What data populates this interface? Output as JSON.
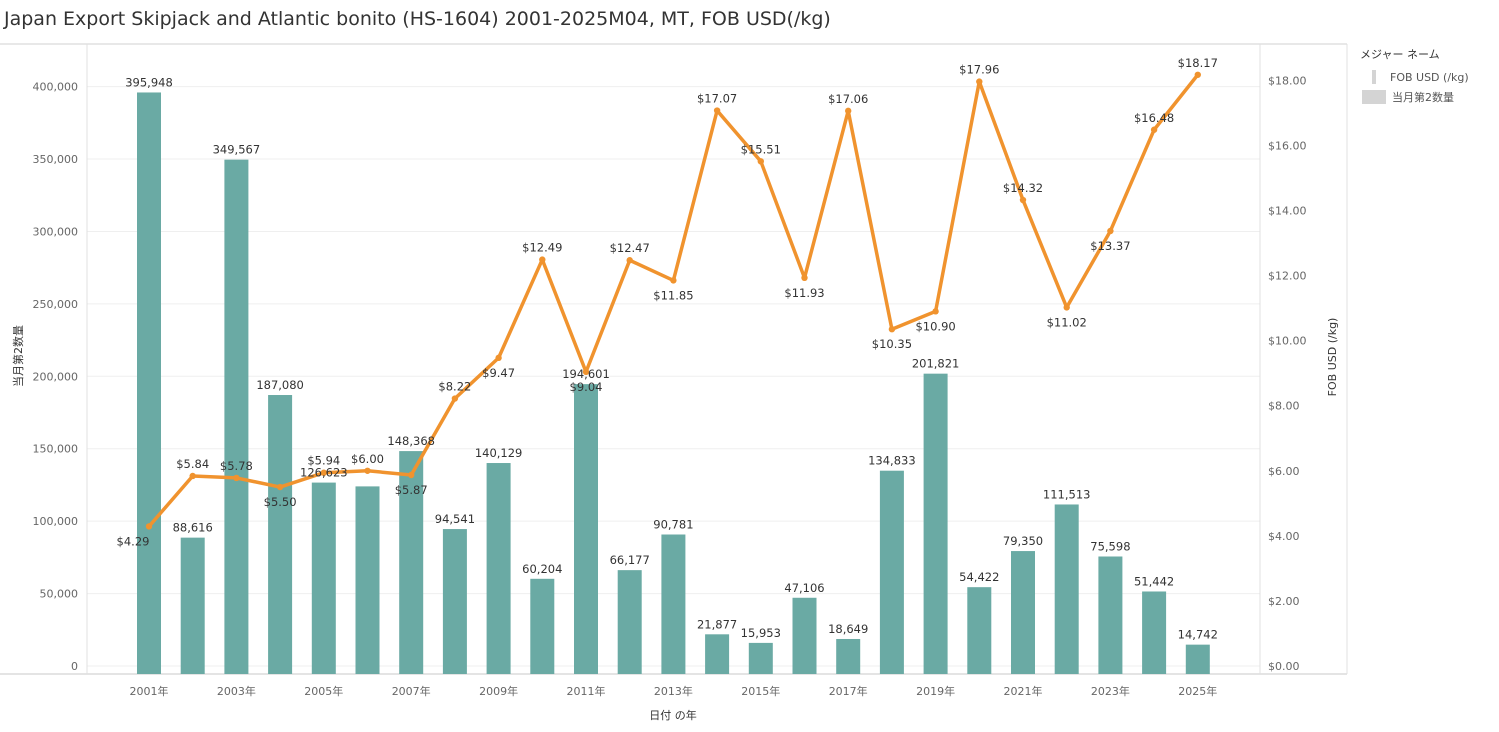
{
  "title": "Japan Export Skipjack and Atlantic bonito (HS-1604) 2001-2025M04, MT, FOB USD(/kg)",
  "legend": {
    "title": "メジャー ネーム",
    "items": [
      {
        "label": "FOB USD (/kg)",
        "color": "#d4d4d4"
      },
      {
        "label": "当月第2数量",
        "color": "#d4d4d4"
      }
    ]
  },
  "colors": {
    "bar": "#6aaaa4",
    "line": "#f0932e"
  },
  "chart_data": {
    "type": "bar",
    "categories": [
      "2001",
      "2002",
      "2003",
      "2004",
      "2005",
      "2006",
      "2007",
      "2008",
      "2009",
      "2010",
      "2011",
      "2012",
      "2013",
      "2014",
      "2015",
      "2016",
      "2017",
      "2018",
      "2019",
      "2020",
      "2021",
      "2022",
      "2023",
      "2024",
      "2025"
    ],
    "x_tick_labels": [
      "2001年",
      "2003年",
      "2005年",
      "2007年",
      "2009年",
      "2011年",
      "2013年",
      "2015年",
      "2017年",
      "2019年",
      "2021年",
      "2023年",
      "2025年"
    ],
    "xlabel": "日付 の年",
    "ylabel": "当月第2数量",
    "y2label": "FOB USD (/kg)",
    "ylim": [
      0,
      420000
    ],
    "y_ticks": [
      "0",
      "50,000",
      "100,000",
      "150,000",
      "200,000",
      "250,000",
      "300,000",
      "350,000",
      "400,000"
    ],
    "y2lim": [
      0,
      19
    ],
    "y2_ticks": [
      "$0.00",
      "$2.00",
      "$4.00",
      "$6.00",
      "$8.00",
      "$10.00",
      "$12.00",
      "$14.00",
      "$16.00",
      "$18.00"
    ],
    "series": [
      {
        "name": "当月第2数量",
        "type": "bar",
        "axis": "left",
        "values": [
          395948,
          88616,
          349567,
          187080,
          126623,
          124000,
          148368,
          94541,
          140129,
          60204,
          194601,
          66177,
          90781,
          21877,
          15953,
          47106,
          18649,
          134833,
          201821,
          54422,
          79350,
          111513,
          75598,
          51442,
          14742
        ],
        "labels": [
          "395,948",
          "88,616",
          "349,567",
          "187,080",
          "126,623",
          "",
          "148,368",
          "94,541",
          "140,129",
          "60,204",
          "194,601",
          "66,177",
          "90,781",
          "21,877",
          "15,953",
          "47,106",
          "18,649",
          "134,833",
          "201,821",
          "54,422",
          "79,350",
          "111,513",
          "75,598",
          "51,442",
          "14,742"
        ]
      },
      {
        "name": "FOB USD (/kg)",
        "type": "line",
        "axis": "right",
        "values": [
          4.29,
          5.84,
          5.78,
          5.5,
          5.94,
          6.0,
          5.87,
          8.22,
          9.47,
          12.49,
          9.04,
          12.47,
          11.85,
          17.07,
          15.51,
          11.93,
          17.06,
          10.35,
          10.9,
          17.96,
          14.32,
          11.02,
          13.37,
          16.48,
          18.17
        ],
        "labels": [
          "$4.29",
          "$5.84",
          "$5.78",
          "$5.50",
          "$5.94",
          "$6.00",
          "$5.87",
          "$8.22",
          "$9.47",
          "$12.49",
          "$9.04",
          "$12.47",
          "$11.85",
          "$17.07",
          "$15.51",
          "$11.93",
          "$17.06",
          "$10.35",
          "$10.90",
          "$17.96",
          "$14.32",
          "$11.02",
          "$13.37",
          "$16.48",
          "$18.17"
        ]
      }
    ],
    "grid": true,
    "legend_position": "top-right"
  }
}
